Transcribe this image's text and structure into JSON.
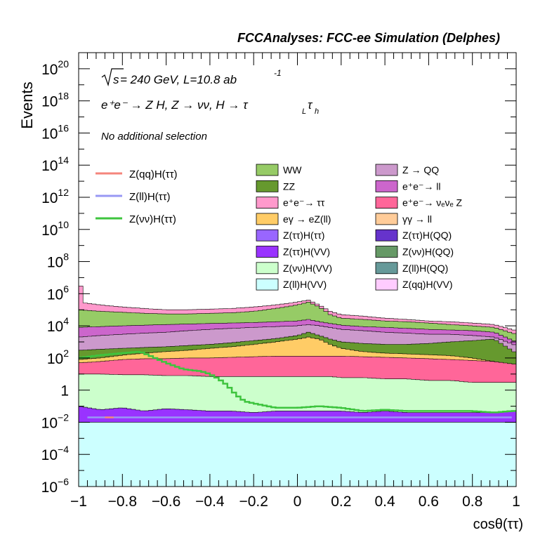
{
  "chart_data": {
    "type": "area",
    "header": "FCCAnalyses: FCC-ee Simulation (Delphes)",
    "annotations": {
      "energy_line_sqrt": "s",
      "energy_line_rest": " = 240 GeV, L=10.8 ab",
      "energy_line_exp": "-1",
      "process_line": "e⁺e⁻ → Z H, Z → νν, H → τ",
      "process_sub1": "L",
      "process_tau": "τ",
      "process_sub2": "h",
      "selection": "No additional selection"
    },
    "xlabel": "cosθ(ττ)",
    "ylabel": "Events",
    "xlim": [
      -1,
      1
    ],
    "ylim": [
      1e-06,
      1e+21
    ],
    "yscale": "log",
    "x_ticks": [
      "−1",
      "−0.8",
      "−0.6",
      "−0.4",
      "−0.2",
      "0",
      "0.2",
      "0.4",
      "0.6",
      "0.8",
      "1"
    ],
    "y_ticks": [
      {
        "base": "10",
        "exp": "−6",
        "value": 1e-06
      },
      {
        "base": "10",
        "exp": "−4",
        "value": 0.0001
      },
      {
        "base": "10",
        "exp": "−2",
        "value": 0.01
      },
      {
        "base": "1",
        "exp": "",
        "value": 1
      },
      {
        "base": "10",
        "exp": "2",
        "value": 100.0
      },
      {
        "base": "10",
        "exp": "4",
        "value": 10000.0
      },
      {
        "base": "10",
        "exp": "6",
        "value": 1000000.0
      },
      {
        "base": "10",
        "exp": "8",
        "value": 100000000.0
      },
      {
        "base": "10",
        "exp": "10",
        "value": 10000000000.0
      },
      {
        "base": "10",
        "exp": "12",
        "value": 1000000000000.0
      },
      {
        "base": "10",
        "exp": "14",
        "value": 100000000000000.0
      },
      {
        "base": "10",
        "exp": "16",
        "value": 1e+16
      },
      {
        "base": "10",
        "exp": "18",
        "value": 1e+18
      },
      {
        "base": "10",
        "exp": "20",
        "value": 1e+20
      }
    ],
    "grid": false,
    "legend_lines_position": "top-left",
    "legend_stack_position": "top-right",
    "signal_lines": [
      {
        "name": "Z(qq)H(ττ)",
        "color": "#f4857c"
      },
      {
        "name": "Z(ll)H(ττ)",
        "color": "#9898f4"
      },
      {
        "name": "Z(νν)H(ττ)",
        "color": "#3ec43e"
      }
    ],
    "stack_legend": [
      {
        "name": "WW",
        "color": "#96cb66"
      },
      {
        "name": "Z → QQ",
        "color": "#cc99cc"
      },
      {
        "name": "ZZ",
        "color": "#66992e"
      },
      {
        "name": "e⁺e⁻→ ll",
        "color": "#cc66cc"
      },
      {
        "name": "e⁺e⁻→ ττ",
        "color": "#ff99cc"
      },
      {
        "name": "e⁺e⁻→ νₑνₑ Z",
        "color": "#ff6699"
      },
      {
        "name": "eγ → eZ(ll)",
        "color": "#ffcc66"
      },
      {
        "name": "γγ → ll",
        "color": "#ffcc99"
      },
      {
        "name": "Z(ττ)H(ττ)",
        "color": "#9966ff"
      },
      {
        "name": "Z(ττ)H(QQ)",
        "color": "#6633cc"
      },
      {
        "name": "Z(ττ)H(VV)",
        "color": "#9933ff"
      },
      {
        "name": "Z(νν)H(QQ)",
        "color": "#669966"
      },
      {
        "name": "Z(νν)H(VV)",
        "color": "#ccffcc"
      },
      {
        "name": "Z(ll)H(QQ)",
        "color": "#669999"
      },
      {
        "name": "Z(ll)H(VV)",
        "color": "#ccffff"
      },
      {
        "name": "Z(qq)H(VV)",
        "color": "#ffccff"
      }
    ],
    "stack_envelope_x": [
      -1.0,
      -0.9,
      -0.8,
      -0.7,
      -0.6,
      -0.5,
      -0.4,
      -0.3,
      -0.2,
      -0.1,
      0.0,
      0.05,
      0.1,
      0.15,
      0.2,
      0.3,
      0.4,
      0.5,
      0.6,
      0.7,
      0.8,
      0.9,
      1.0
    ],
    "stack_layers": [
      {
        "name": "Z(ll)H(VV)",
        "color": "#ccffff",
        "top": [
          0.01,
          0.01,
          0.01,
          0.01,
          0.01,
          0.01,
          0.01,
          0.01,
          0.01,
          0.01,
          0.01,
          0.01,
          0.01,
          0.01,
          0.01,
          0.01,
          0.01,
          0.01,
          0.01,
          0.01,
          0.01,
          0.01,
          0.01
        ]
      },
      {
        "name": "Z(ττ)H(VV)",
        "color": "#9933ff",
        "top": [
          0.1,
          0.06,
          0.08,
          0.05,
          0.07,
          0.06,
          0.05,
          0.05,
          0.04,
          0.05,
          0.05,
          0.05,
          0.05,
          0.05,
          0.05,
          0.04,
          0.05,
          0.04,
          0.04,
          0.04,
          0.04,
          0.04,
          0.05
        ]
      },
      {
        "name": "Z(νν)H(VV)",
        "color": "#ccffcc",
        "top": [
          10,
          10,
          9,
          9,
          8,
          8,
          7,
          7,
          7,
          7,
          7,
          7,
          7,
          7,
          6,
          6,
          5,
          5,
          4,
          4,
          3,
          3,
          3
        ]
      },
      {
        "name": "e⁺e⁻→ νₑνₑ Z",
        "color": "#ff6699",
        "top": [
          50,
          60,
          80,
          90,
          90,
          100,
          100,
          110,
          120,
          130,
          130,
          130,
          130,
          130,
          130,
          120,
          110,
          100,
          90,
          80,
          70,
          60,
          40
        ]
      },
      {
        "name": "eγ → eZ(ll)",
        "color": "#ffcc66",
        "top": [
          80,
          100,
          150,
          200,
          250,
          300,
          400,
          500,
          700,
          1000,
          1500,
          2000,
          1500,
          700,
          400,
          250,
          200,
          180,
          160,
          140,
          100,
          60,
          30
        ]
      },
      {
        "name": "ZZ",
        "color": "#66992e",
        "top": [
          300,
          350,
          400,
          450,
          500,
          600,
          700,
          900,
          1200,
          1600,
          2500,
          4000,
          2500,
          1500,
          1000,
          800,
          700,
          700,
          800,
          1000,
          1200,
          1500,
          200
        ]
      },
      {
        "name": "Z → QQ",
        "color": "#cc99cc",
        "top": [
          2000,
          2500,
          3000,
          3500,
          4000,
          5000,
          6000,
          7000,
          8000,
          9000,
          10000,
          12000,
          10000,
          8000,
          6000,
          5000,
          4000,
          3500,
          3000,
          3000,
          2500,
          2000,
          600
        ]
      },
      {
        "name": "e⁺e⁻→ ll",
        "color": "#cc66cc",
        "top": [
          8000,
          9000,
          10000,
          11000,
          12000,
          13000,
          14000,
          15000,
          16000,
          18000,
          20000,
          25000,
          18000,
          14000,
          11000,
          9000,
          8000,
          7000,
          6000,
          5500,
          5000,
          4000,
          1000
        ]
      },
      {
        "name": "WW",
        "color": "#96cb66",
        "top": [
          100000,
          80000,
          70000,
          60000,
          55000,
          55000,
          60000,
          65000,
          80000,
          120000,
          200000,
          300000,
          150000,
          50000,
          30000,
          25000,
          20000,
          18000,
          15000,
          12000,
          10000,
          8000,
          3000
        ]
      },
      {
        "name": "e⁺e⁻→ ττ",
        "color": "#ff99cc",
        "top": [
          300000,
          200000,
          150000,
          120000,
          100000,
          100000,
          110000,
          120000,
          150000,
          200000,
          300000,
          400000,
          200000,
          80000,
          50000,
          40000,
          30000,
          25000,
          20000,
          18000,
          15000,
          12000,
          5000
        ]
      }
    ],
    "stack_first_bin_top": 3000000.0,
    "znn_signal_curve": {
      "x": [
        -1.0,
        -0.9,
        -0.8,
        -0.72,
        -0.68,
        -0.6,
        -0.52,
        -0.44,
        -0.4,
        -0.36,
        -0.32,
        -0.28,
        -0.24,
        -0.2,
        -0.1,
        0.0,
        0.1,
        0.2,
        0.3,
        0.4,
        0.5,
        0.6,
        0.7,
        0.8,
        0.9,
        0.98
      ],
      "y": [
        100,
        150,
        200,
        250,
        150,
        50,
        20,
        15,
        10,
        5,
        2,
        0.5,
        0.2,
        0.15,
        0.08,
        0.08,
        0.1,
        0.08,
        0.05,
        0.06,
        0.05,
        0.05,
        0.05,
        0.05,
        0.04,
        0.05
      ]
    },
    "zll_signal_level": 0.02,
    "zqq_signal_level": 0.02
  }
}
